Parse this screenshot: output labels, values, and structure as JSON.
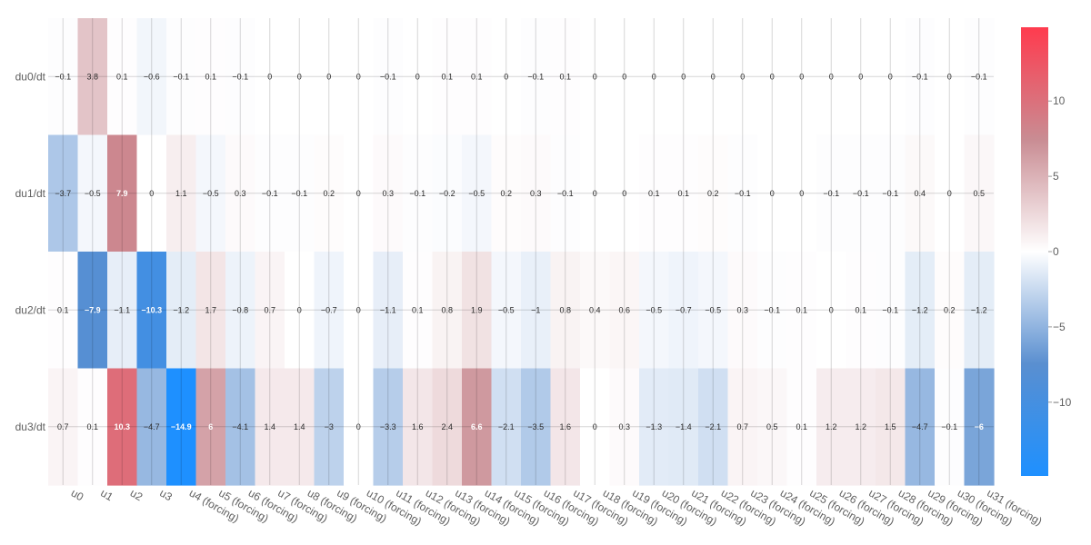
{
  "chart_data": {
    "type": "heatmap",
    "title": "",
    "xlabel": "",
    "ylabel": "",
    "x_categories": [
      "u0",
      "u1",
      "u2",
      "u3",
      "u4 (forcing)",
      "u5 (forcing)",
      "u6 (forcing)",
      "u7 (forcing)",
      "u8 (forcing)",
      "u9 (forcing)",
      "u10 (forcing)",
      "u11 (forcing)",
      "u12 (forcing)",
      "u13 (forcing)",
      "u14 (forcing)",
      "u15 (forcing)",
      "u16 (forcing)",
      "u17 (forcing)",
      "u18 (forcing)",
      "u19 (forcing)",
      "u20 (forcing)",
      "u21 (forcing)",
      "u22 (forcing)",
      "u23 (forcing)",
      "u24 (forcing)",
      "u25 (forcing)",
      "u26 (forcing)",
      "u27 (forcing)",
      "u28 (forcing)",
      "u29 (forcing)",
      "u30 (forcing)",
      "u31 (forcing)"
    ],
    "y_categories": [
      "du0/dt",
      "du1/dt",
      "du2/dt",
      "du3/dt"
    ],
    "z": [
      [
        -0.1,
        3.8,
        0.1,
        -0.6,
        -0.1,
        0.1,
        -0.1,
        0,
        0,
        0,
        0,
        -0.1,
        0,
        0.1,
        0.1,
        0,
        -0.1,
        0.1,
        0,
        0,
        0,
        0,
        0,
        0,
        0,
        0,
        0,
        0,
        0,
        -0.1,
        0,
        -0.1
      ],
      [
        -3.7,
        -0.5,
        7.9,
        0,
        1.1,
        -0.5,
        0.3,
        -0.1,
        -0.1,
        0.2,
        0,
        0.3,
        -0.1,
        -0.2,
        -0.5,
        0.2,
        0.3,
        -0.1,
        0,
        0,
        0.1,
        0.1,
        0.2,
        -0.1,
        0,
        0,
        -0.1,
        -0.1,
        -0.1,
        0.4,
        0,
        0.5
      ],
      [
        0.1,
        -7.9,
        -1.1,
        -10.3,
        -1.2,
        1.7,
        -0.8,
        0.7,
        0,
        -0.7,
        0,
        -1.1,
        0.1,
        0.8,
        1.9,
        -0.5,
        -1,
        0.8,
        0.4,
        0.6,
        -0.5,
        -0.7,
        -0.5,
        0.3,
        -0.1,
        0.1,
        0,
        0.1,
        -0.1,
        -1.2,
        0.2,
        -1.2
      ],
      [
        0.7,
        0.1,
        10.3,
        -4.7,
        -14.9,
        6,
        -4.1,
        1.4,
        1.4,
        -3,
        0,
        -3.3,
        1.6,
        2.4,
        6.6,
        -2.1,
        -3.5,
        1.6,
        0,
        0.3,
        -1.3,
        -1.4,
        -2.1,
        0.7,
        0.5,
        0.1,
        1.2,
        1.2,
        1.5,
        -4.7,
        -0.1,
        -6
      ]
    ],
    "z_labels": [
      [
        "−0.1",
        "3.8",
        "0.1",
        "−0.6",
        "−0.1",
        "0.1",
        "−0.1",
        "0",
        "0",
        "0",
        "0",
        "−0.1",
        "0",
        "0.1",
        "0.1",
        "0",
        "−0.1",
        "0.1",
        "0",
        "0",
        "0",
        "0",
        "0",
        "0",
        "0",
        "0",
        "0",
        "0",
        "0",
        "−0.1",
        "0",
        "−0.1"
      ],
      [
        "−3.7",
        "−0.5",
        "7.9",
        "0",
        "1.1",
        "−0.5",
        "0.3",
        "−0.1",
        "−0.1",
        "0.2",
        "0",
        "0.3",
        "−0.1",
        "−0.2",
        "−0.5",
        "0.2",
        "0.3",
        "−0.1",
        "0",
        "0",
        "0.1",
        "0.1",
        "0.2",
        "−0.1",
        "0",
        "0",
        "−0.1",
        "−0.1",
        "−0.1",
        "0.4",
        "0",
        "0.5"
      ],
      [
        "0.1",
        "−7.9",
        "−1.1",
        "−10.3",
        "−1.2",
        "1.7",
        "−0.8",
        "0.7",
        "0",
        "−0.7",
        "0",
        "−1.1",
        "0.1",
        "0.8",
        "1.9",
        "−0.5",
        "−1",
        "0.8",
        "0.4",
        "0.6",
        "−0.5",
        "−0.7",
        "−0.5",
        "0.3",
        "−0.1",
        "0.1",
        "0",
        "0.1",
        "−0.1",
        "−1.2",
        "0.2",
        "−1.2"
      ],
      [
        "0.7",
        "0.1",
        "10.3",
        "−4.7",
        "−14.9",
        "6",
        "−4.1",
        "1.4",
        "1.4",
        "−3",
        "0",
        "−3.3",
        "1.6",
        "2.4",
        "6.6",
        "−2.1",
        "−3.5",
        "1.6",
        "0",
        "0.3",
        "−1.3",
        "−1.4",
        "−2.1",
        "0.7",
        "0.5",
        "0.1",
        "1.2",
        "1.2",
        "1.5",
        "−4.7",
        "−0.1",
        "−6"
      ]
    ],
    "zrange": [
      -14.9,
      14.9
    ],
    "colorscale": [
      [
        0.0,
        "#1e90ff"
      ],
      [
        0.25,
        "#5a8fd0"
      ],
      [
        0.5,
        "#ffffff"
      ],
      [
        0.75,
        "#c98c93"
      ],
      [
        1.0,
        "#ff3b4e"
      ]
    ],
    "colorbar": {
      "tickvals": [
        10,
        5,
        0,
        -5,
        -10
      ],
      "ticktext": [
        "10",
        "5",
        "0",
        "−5",
        "−10"
      ]
    },
    "grid": true,
    "legend": "colorbar-right"
  }
}
